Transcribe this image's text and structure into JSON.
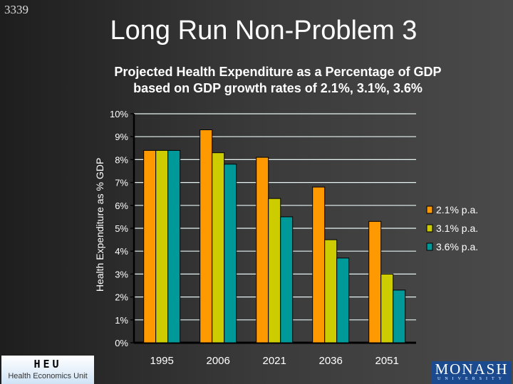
{
  "slide_number": "3339",
  "title": "Long Run Non-Problem 3",
  "logos": {
    "heu_abbr": "HEU",
    "heu_name": "Health Economics Unit",
    "monash": "MONASH",
    "monash_sub": "UNIVERSITY"
  },
  "chart_data": {
    "type": "bar",
    "title": "Projected Health Expenditure as a Percentage of GDP based on GDP growth rates of 2.1%, 3.1%,  3.6%",
    "title_lines": [
      "Projected Health Expenditure as a Percentage of GDP",
      "based on GDP growth rates of 2.1%, 3.1%,  3.6%"
    ],
    "xlabel": "",
    "ylabel": "Health Expenditure as % GDP",
    "ylim": [
      0,
      10
    ],
    "y_ticks": [
      "0%",
      "1%",
      "2%",
      "3%",
      "4%",
      "5%",
      "6%",
      "7%",
      "8%",
      "9%",
      "10%"
    ],
    "grid": true,
    "legend_position": "right",
    "categories": [
      "1995",
      "2006",
      "2021",
      "2036",
      "2051"
    ],
    "series": [
      {
        "name": "2.1% p.a.",
        "color": "#ff9900",
        "values": [
          8.4,
          9.3,
          8.1,
          6.8,
          5.3
        ]
      },
      {
        "name": "3.1% p.a.",
        "color": "#cccc00",
        "values": [
          8.4,
          8.3,
          6.3,
          4.5,
          3.0
        ]
      },
      {
        "name": "3.6% p.a.",
        "color": "#009999",
        "values": [
          8.4,
          7.8,
          5.5,
          3.7,
          2.3
        ]
      }
    ]
  }
}
